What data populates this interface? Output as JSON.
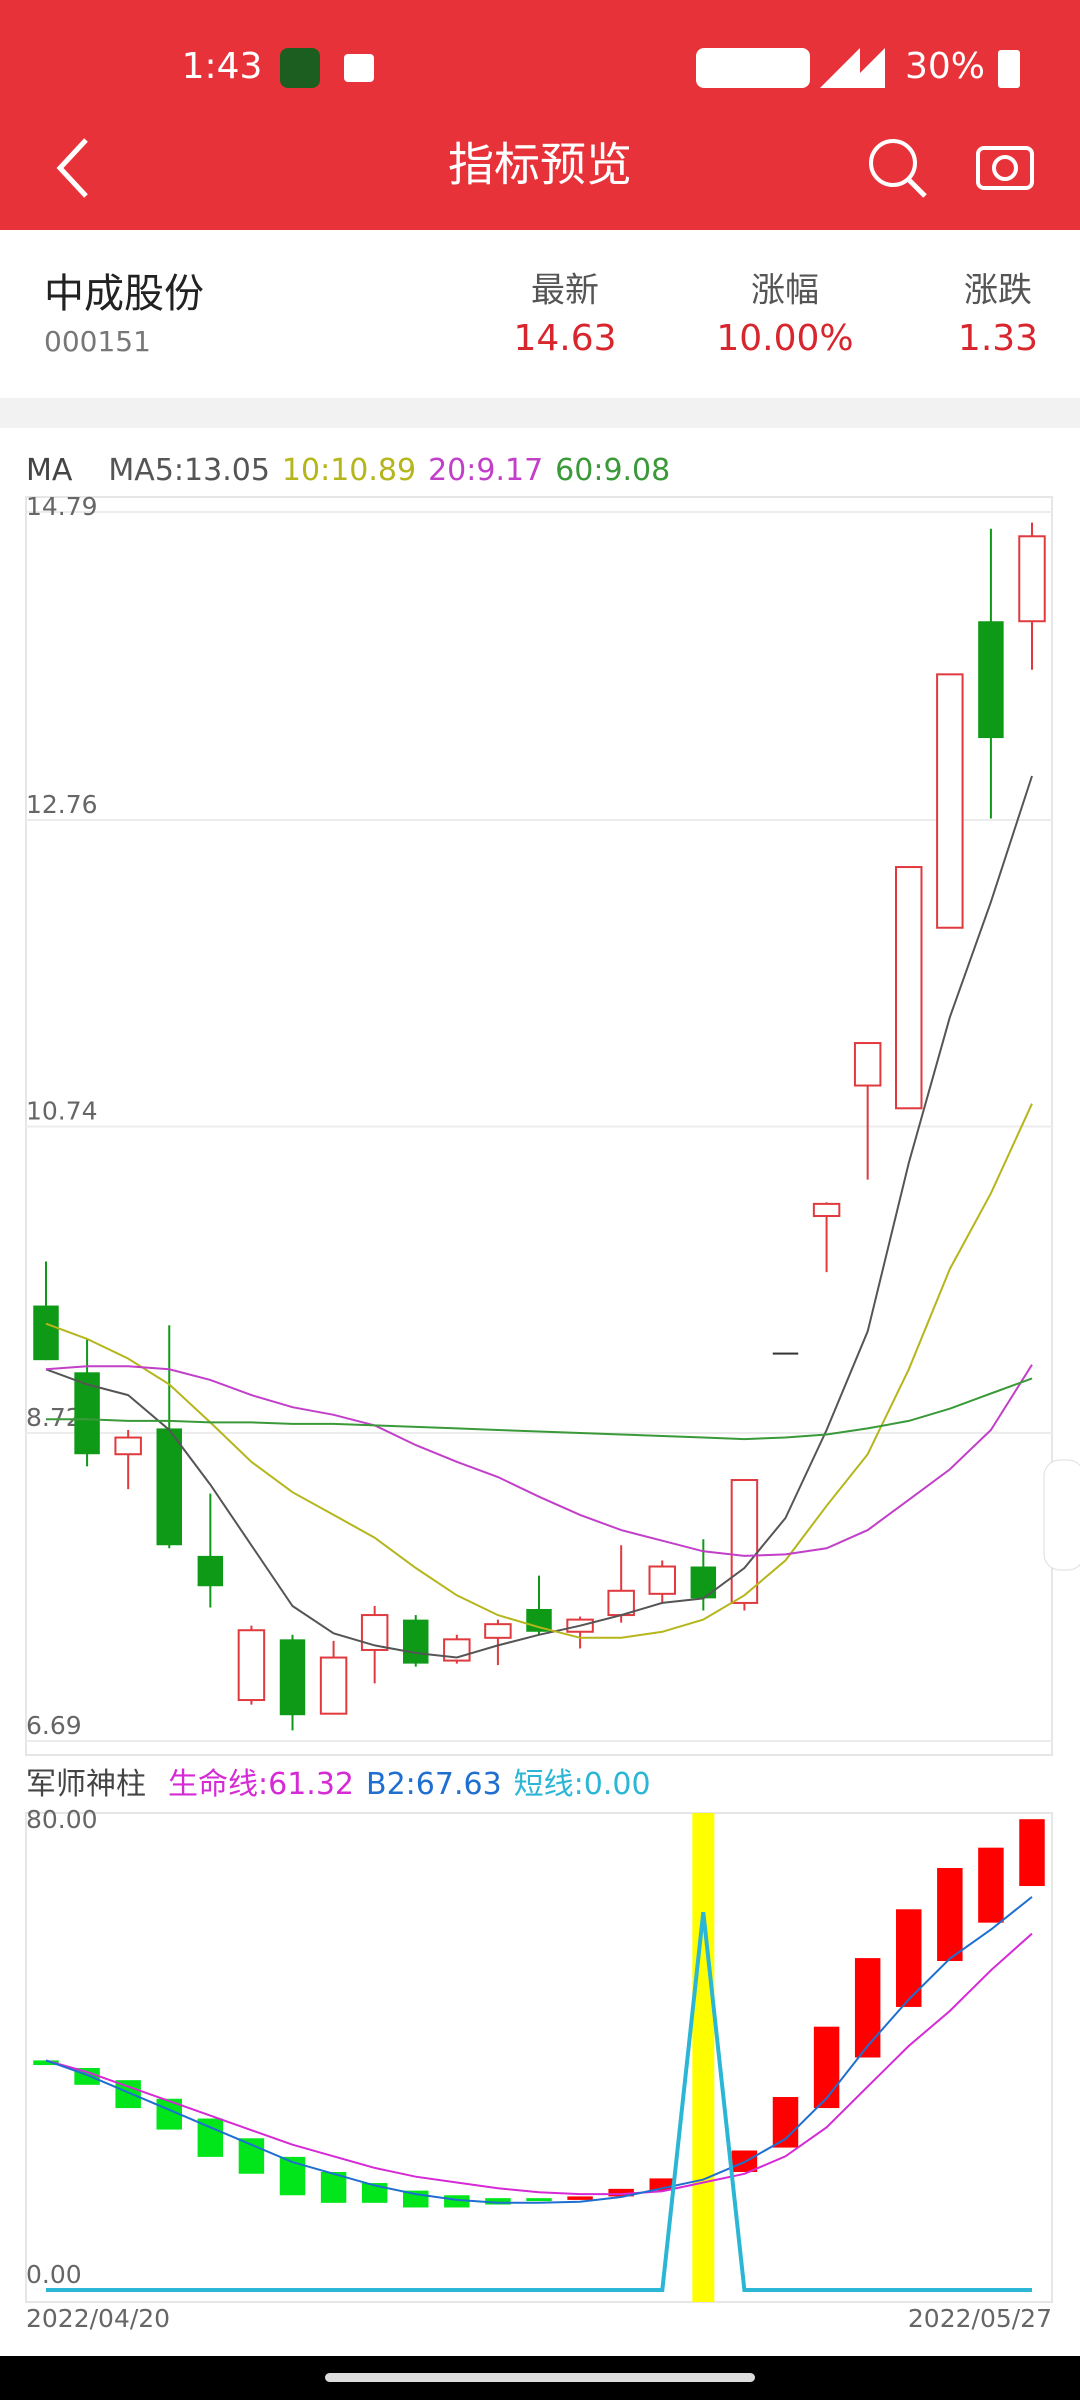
{
  "status_bar": {
    "time": "1:43",
    "battery": "30%"
  },
  "header": {
    "title": "指标预览"
  },
  "stock": {
    "name": "中成股份",
    "code": "000151",
    "fields": [
      {
        "label": "最新",
        "value": "14.63"
      },
      {
        "label": "涨幅",
        "value": "10.00%"
      },
      {
        "label": "涨跌",
        "value": "1.33"
      }
    ]
  },
  "chart_data": [
    {
      "type": "candlestick",
      "title": "MA",
      "open": [
        9.56,
        9.12,
        8.58,
        8.75,
        7.91,
        6.96,
        7.36,
        6.87,
        7.29,
        7.49,
        7.22,
        7.37,
        7.56,
        7.41,
        7.52,
        7.66,
        7.84,
        7.6,
        9.25,
        10.15,
        11.01,
        10.86,
        12.05,
        14.07,
        14.07
      ],
      "high": [
        9.85,
        9.34,
        8.74,
        9.43,
        8.32,
        7.45,
        7.39,
        7.35,
        7.58,
        7.52,
        7.39,
        7.49,
        7.78,
        7.51,
        7.98,
        7.88,
        8.02,
        8.41,
        9.25,
        10.24,
        11.29,
        12.45,
        13.72,
        14.68,
        14.72
      ],
      "low": [
        9.2,
        8.5,
        8.35,
        7.96,
        7.57,
        6.93,
        6.76,
        6.87,
        7.07,
        7.18,
        7.2,
        7.19,
        7.39,
        7.3,
        7.47,
        7.6,
        7.55,
        7.55,
        9.25,
        9.78,
        10.39,
        10.86,
        12.05,
        12.77,
        13.75
      ],
      "close": [
        9.2,
        8.58,
        8.69,
        7.98,
        7.71,
        7.42,
        6.86,
        7.24,
        7.52,
        7.2,
        7.36,
        7.46,
        7.41,
        7.49,
        7.68,
        7.84,
        7.63,
        8.41,
        9.25,
        10.23,
        11.29,
        12.45,
        13.72,
        13.3,
        14.63
      ],
      "up_color": "#e0393e",
      "down_color": "#0e9a17",
      "flat_color": "#333333",
      "hollow_up": true,
      "ylim": [
        6.69,
        14.79
      ],
      "yticks": [
        6.69,
        8.72,
        10.74,
        12.76,
        14.79
      ],
      "grid": true,
      "series": [
        {
          "name": "MA5:",
          "color": "#555555",
          "values": [
            9.14,
            9.04,
            8.97,
            8.74,
            8.38,
            7.98,
            7.58,
            7.4,
            7.32,
            7.27,
            7.24,
            7.32,
            7.39,
            7.45,
            7.52,
            7.6,
            7.63,
            7.83,
            8.16,
            8.74,
            9.39,
            10.5,
            11.46,
            12.22,
            13.05
          ]
        },
        {
          "name": "10:",
          "color": "#b5b51c",
          "values": [
            9.44,
            9.34,
            9.21,
            9.04,
            8.79,
            8.53,
            8.33,
            8.18,
            8.03,
            7.83,
            7.65,
            7.52,
            7.44,
            7.37,
            7.37,
            7.41,
            7.49,
            7.65,
            7.88,
            8.24,
            8.58,
            9.14,
            9.8,
            10.3,
            10.89
          ]
        },
        {
          "name": "20:",
          "color": "#c23fc9",
          "values": [
            9.14,
            9.16,
            9.16,
            9.14,
            9.07,
            8.97,
            8.89,
            8.84,
            8.77,
            8.64,
            8.53,
            8.43,
            8.3,
            8.18,
            8.08,
            8.01,
            7.94,
            7.91,
            7.92,
            7.96,
            8.08,
            8.28,
            8.48,
            8.74,
            9.17
          ]
        },
        {
          "name": "60:",
          "color": "#3a9a3a",
          "values": [
            8.81,
            8.81,
            8.8,
            8.8,
            8.79,
            8.79,
            8.78,
            8.78,
            8.77,
            8.76,
            8.75,
            8.74,
            8.73,
            8.72,
            8.71,
            8.7,
            8.69,
            8.68,
            8.69,
            8.71,
            8.75,
            8.8,
            8.88,
            8.98,
            9.08
          ]
        }
      ]
    },
    {
      "type": "candlestick",
      "title": "军师神柱",
      "categories": [
        "2022/04/20",
        null,
        null,
        null,
        null,
        null,
        null,
        null,
        null,
        null,
        null,
        null,
        null,
        null,
        null,
        null,
        null,
        null,
        null,
        null,
        null,
        null,
        null,
        null,
        "2022/05/27"
      ],
      "open": [
        39.5,
        38.2,
        36.1,
        32.9,
        29.5,
        26.1,
        22.9,
        20.3,
        18.4,
        17.1,
        16.3,
        15.8,
        15.8,
        15.5,
        16.1,
        17.1,
        null,
        20.3,
        24.5,
        31.3,
        40.0,
        48.7,
        56.6,
        63.2,
        69.5
      ],
      "close": [
        38.7,
        35.3,
        31.3,
        27.6,
        22.9,
        20.0,
        16.3,
        15.0,
        15.0,
        14.2,
        14.2,
        14.7,
        15.3,
        16.1,
        17.4,
        19.2,
        null,
        24.0,
        33.2,
        45.3,
        57.1,
        65.5,
        72.6,
        76.1,
        81.0
      ],
      "up_color": "#ff0000",
      "down_color": "#00e61a",
      "hollow_up": false,
      "highlight_index": 16,
      "highlight_color": "#ffff00",
      "ylim": [
        0,
        80
      ],
      "yticks": [
        {
          "value": 0,
          "label": "0.00"
        },
        {
          "value": 80,
          "label": "80.00"
        }
      ],
      "series": [
        {
          "name": "生命线:",
          "color": "#d52ad5",
          "last_label": "61.32",
          "values": [
            39.5,
            37.5,
            35.0,
            32.5,
            30.0,
            27.5,
            25.0,
            23.0,
            21.0,
            19.5,
            18.5,
            17.5,
            16.8,
            16.5,
            16.5,
            17.0,
            18.5,
            20.0,
            23.0,
            28.0,
            35.0,
            42.0,
            48.0,
            55.0,
            61.32
          ]
        },
        {
          "name": "B2:",
          "color": "#1e6fd0",
          "last_label": "67.63",
          "values": [
            39.5,
            37.0,
            34.0,
            31.0,
            28.0,
            25.0,
            22.0,
            20.0,
            18.0,
            16.5,
            15.5,
            15.0,
            15.0,
            15.2,
            16.0,
            17.5,
            19.0,
            22.0,
            26.0,
            33.0,
            42.0,
            50.0,
            57.0,
            62.0,
            67.63
          ]
        },
        {
          "name": "短线:",
          "color": "#2bb6d6",
          "last_label": "0.00",
          "values": [
            0,
            0,
            0,
            0,
            0,
            0,
            0,
            0,
            0,
            0,
            0,
            0,
            0,
            0,
            0,
            0,
            65,
            0,
            0,
            0,
            0,
            0,
            0,
            0,
            0
          ]
        }
      ]
    }
  ]
}
